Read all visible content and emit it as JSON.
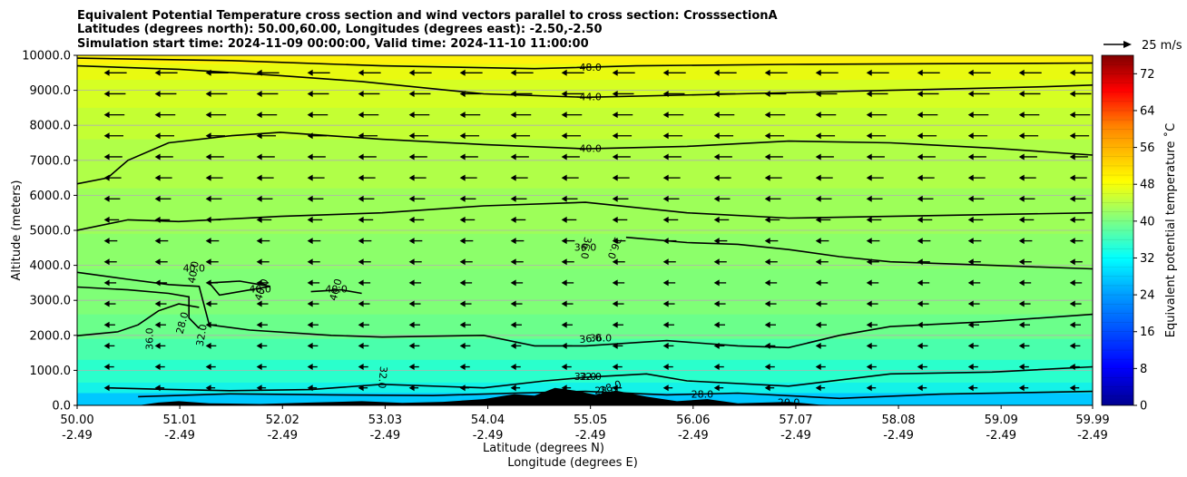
{
  "chart_data": {
    "type": "contour",
    "title_lines": [
      "Equivalent Potential Temperature cross section and wind vectors parallel to cross section: CrosssectionA",
      "Latitudes (degrees north): 50.00,60.00, Longitudes (degrees east): -2.50,-2.50",
      "Simulation start time: 2024-11-09 00:00:00, Valid time: 2024-11-10 11:00:00"
    ],
    "xlabel_lines": [
      "Latitude (degrees N)",
      "Longitude (degrees E)"
    ],
    "ylabel": "Altitude (meters)",
    "colorbar_label": "Equivalent potential temperature ˚C",
    "quiver_key_label": "25 m/s",
    "xlim": [
      50.0,
      59.99
    ],
    "ylim": [
      0,
      10000
    ],
    "xticks": [
      {
        "value": 50.0,
        "lat": "50.00",
        "lon": "-2.49"
      },
      {
        "value": 51.01,
        "lat": "51.01",
        "lon": "-2.49"
      },
      {
        "value": 52.02,
        "lat": "52.02",
        "lon": "-2.49"
      },
      {
        "value": 53.03,
        "lat": "53.03",
        "lon": "-2.49"
      },
      {
        "value": 54.04,
        "lat": "54.04",
        "lon": "-2.49"
      },
      {
        "value": 55.05,
        "lat": "55.05",
        "lon": "-2.49"
      },
      {
        "value": 56.06,
        "lat": "56.06",
        "lon": "-2.49"
      },
      {
        "value": 57.07,
        "lat": "57.07",
        "lon": "-2.49"
      },
      {
        "value": 58.08,
        "lat": "58.08",
        "lon": "-2.49"
      },
      {
        "value": 59.09,
        "lat": "59.09",
        "lon": "-2.49"
      },
      {
        "value": 59.99,
        "lat": "59.99",
        "lon": "-2.49"
      }
    ],
    "yticks": [
      {
        "value": 0,
        "label": "0.0"
      },
      {
        "value": 1000,
        "label": "1000.0"
      },
      {
        "value": 2000,
        "label": "2000.0"
      },
      {
        "value": 3000,
        "label": "3000.0"
      },
      {
        "value": 4000,
        "label": "4000.0"
      },
      {
        "value": 5000,
        "label": "5000.0"
      },
      {
        "value": 6000,
        "label": "6000.0"
      },
      {
        "value": 7000,
        "label": "7000.0"
      },
      {
        "value": 8000,
        "label": "8000.0"
      },
      {
        "value": 9000,
        "label": "9000.0"
      },
      {
        "value": 10000,
        "label": "10000.0"
      }
    ],
    "colorbar": {
      "range": [
        0,
        76
      ],
      "ticks": [
        0,
        8,
        16,
        24,
        32,
        40,
        48,
        56,
        64,
        72
      ]
    },
    "filled_bands": [
      {
        "top": 10000,
        "color": "#fdf20b"
      },
      {
        "top": 9750,
        "color": "#e9fa10"
      },
      {
        "top": 9300,
        "color": "#d6ff23"
      },
      {
        "top": 8500,
        "color": "#c4ff33"
      },
      {
        "top": 7600,
        "color": "#b0ff48"
      },
      {
        "top": 6200,
        "color": "#9dff59"
      },
      {
        "top": 4900,
        "color": "#8cff6a"
      },
      {
        "top": 3900,
        "color": "#7fff77"
      },
      {
        "top": 2600,
        "color": "#6bff8b"
      },
      {
        "top": 1900,
        "color": "#4affac"
      },
      {
        "top": 1300,
        "color": "#2affcc"
      },
      {
        "top": 650,
        "color": "#14f2e8"
      },
      {
        "top": 350,
        "color": "#00c8ff"
      }
    ],
    "contours": [
      {
        "level": 48,
        "label": "48.0",
        "label_at": [
          55.05,
          9640
        ],
        "points": [
          [
            50.0,
            9920
          ],
          [
            51.5,
            9850
          ],
          [
            53.0,
            9700
          ],
          [
            54.5,
            9620
          ],
          [
            55.5,
            9700
          ],
          [
            57.0,
            9740
          ],
          [
            59.99,
            9780
          ]
        ]
      },
      {
        "level": 44,
        "label": "44.0",
        "label_at": [
          55.05,
          8800
        ],
        "points": [
          [
            50.0,
            9700
          ],
          [
            51.0,
            9600
          ],
          [
            52.0,
            9420
          ],
          [
            52.8,
            9250
          ],
          [
            54.0,
            8900
          ],
          [
            55.0,
            8800
          ],
          [
            56.5,
            8900
          ],
          [
            58.0,
            9000
          ],
          [
            59.5,
            9100
          ],
          [
            59.99,
            9150
          ]
        ]
      },
      {
        "level": 40,
        "label": "40.0",
        "label_at": [
          55.05,
          7320
        ],
        "points": [
          [
            50.0,
            6330
          ],
          [
            50.3,
            6500
          ],
          [
            50.5,
            7000
          ],
          [
            50.9,
            7500
          ],
          [
            51.5,
            7700
          ],
          [
            52.0,
            7800
          ],
          [
            53.0,
            7600
          ],
          [
            54.0,
            7450
          ],
          [
            55.0,
            7330
          ],
          [
            56.0,
            7400
          ],
          [
            57.0,
            7550
          ],
          [
            58.0,
            7500
          ],
          [
            59.0,
            7350
          ],
          [
            59.99,
            7150
          ]
        ]
      },
      {
        "level": 40,
        "label": "",
        "label_at": null,
        "points": [
          [
            50.0,
            5000
          ],
          [
            50.5,
            5300
          ],
          [
            51.0,
            5250
          ],
          [
            52.0,
            5400
          ],
          [
            53.0,
            5500
          ],
          [
            54.0,
            5700
          ],
          [
            55.0,
            5800
          ],
          [
            56.0,
            5500
          ],
          [
            57.0,
            5350
          ],
          [
            58.0,
            5400
          ],
          [
            59.0,
            5450
          ],
          [
            59.99,
            5500
          ]
        ]
      },
      {
        "level": 36,
        "label": "36.0",
        "label_at": [
          55.0,
          4500
        ],
        "points": [
          [
            55.4,
            4800
          ],
          [
            56.0,
            4650
          ],
          [
            56.5,
            4600
          ],
          [
            57.0,
            4450
          ],
          [
            57.5,
            4250
          ],
          [
            58.0,
            4100
          ],
          [
            59.0,
            4000
          ],
          [
            59.99,
            3900
          ]
        ]
      },
      {
        "level": 40,
        "label": "40.0",
        "label_at": [
          51.15,
          3900
        ],
        "points": [
          [
            50.0,
            3800
          ],
          [
            50.5,
            3600
          ],
          [
            50.9,
            3450
          ],
          [
            51.2,
            3400
          ],
          [
            51.3,
            2300
          ],
          [
            51.7,
            2150
          ],
          [
            52.5,
            2000
          ],
          [
            53.0,
            1950
          ],
          [
            54.0,
            2000
          ],
          [
            54.5,
            1700
          ],
          [
            55.0,
            1700
          ],
          [
            55.8,
            1850
          ],
          [
            56.5,
            1700
          ],
          [
            57.0,
            1650
          ],
          [
            57.5,
            2000
          ],
          [
            58.0,
            2250
          ],
          [
            59.0,
            2400
          ],
          [
            59.99,
            2600
          ]
        ]
      },
      {
        "level": 40,
        "label": "40.0",
        "label_at": [
          51.8,
          3300
        ],
        "points": [
          [
            51.3,
            3500
          ],
          [
            51.6,
            3550
          ],
          [
            51.9,
            3400
          ],
          [
            51.4,
            3150
          ],
          [
            51.3,
            3500
          ]
        ]
      },
      {
        "level": 40,
        "label": "40.0",
        "label_at": [
          52.55,
          3300
        ],
        "points": [
          [
            52.3,
            3250
          ],
          [
            52.6,
            3300
          ],
          [
            52.8,
            3200
          ]
        ]
      },
      {
        "level": 36,
        "label": "36.0",
        "label_at": [
          55.15,
          1900
        ],
        "points": [
          [
            50.0,
            1990
          ],
          [
            50.4,
            2100
          ],
          [
            50.6,
            2300
          ],
          [
            50.8,
            2700
          ],
          [
            51.0,
            2900
          ],
          [
            51.2,
            2800
          ]
        ]
      },
      {
        "level": 36,
        "label": "",
        "label_at": null,
        "points": [
          [
            50.0,
            3380
          ],
          [
            50.5,
            3300
          ],
          [
            50.9,
            3200
          ],
          [
            51.1,
            3100
          ],
          [
            51.1,
            2500
          ],
          [
            51.2,
            2200
          ]
        ]
      },
      {
        "level": 32,
        "label": "32.0",
        "label_at": [
          55.0,
          800
        ],
        "points": [
          [
            50.3,
            500
          ],
          [
            50.8,
            460
          ],
          [
            51.5,
            420
          ],
          [
            52.3,
            450
          ],
          [
            53.0,
            600
          ],
          [
            54.0,
            500
          ],
          [
            54.6,
            700
          ],
          [
            55.0,
            800
          ],
          [
            55.6,
            900
          ],
          [
            56.0,
            700
          ],
          [
            57.0,
            550
          ],
          [
            58.0,
            900
          ],
          [
            59.0,
            950
          ],
          [
            59.99,
            1100
          ]
        ]
      },
      {
        "level": 28,
        "label": "28.0",
        "label_at": [
          55.2,
          400
        ],
        "points": [
          [
            50.6,
            250
          ],
          [
            51.5,
            330
          ],
          [
            52.5,
            300
          ],
          [
            53.5,
            280
          ],
          [
            54.3,
            350
          ],
          [
            55.0,
            400
          ],
          [
            55.8,
            300
          ],
          [
            56.5,
            350
          ],
          [
            57.5,
            200
          ],
          [
            58.5,
            320
          ],
          [
            59.99,
            400
          ]
        ]
      }
    ],
    "contour_text_labels": [
      {
        "label": "36.0",
        "at": [
          50.72,
          1900
        ],
        "rotate": -90
      },
      {
        "label": "32.0",
        "at": [
          51.23,
          2000
        ],
        "rotate": -80
      },
      {
        "label": "28.0",
        "at": [
          51.04,
          2350
        ],
        "rotate": -75
      },
      {
        "label": "40.0",
        "at": [
          51.15,
          3800
        ],
        "rotate": -80
      },
      {
        "label": "40.0",
        "at": [
          51.82,
          3300
        ],
        "rotate": -70
      },
      {
        "label": "40.0",
        "at": [
          52.55,
          3300
        ],
        "rotate": -75
      },
      {
        "label": "36.0",
        "at": [
          55.0,
          4500
        ],
        "rotate": 100
      },
      {
        "label": "36.0",
        "at": [
          55.28,
          4500
        ],
        "rotate": 110
      },
      {
        "label": "36.0",
        "at": [
          55.05,
          1890
        ],
        "rotate": -5
      },
      {
        "label": "32.0",
        "at": [
          53.0,
          800
        ],
        "rotate": 95
      },
      {
        "label": "32.0",
        "at": [
          55.05,
          800
        ],
        "rotate": 0
      },
      {
        "label": "28.0",
        "at": [
          55.25,
          500
        ],
        "rotate": -20
      },
      {
        "label": "28.0",
        "at": [
          56.15,
          300
        ],
        "rotate": 0
      },
      {
        "label": "20.0",
        "at": [
          57.0,
          70
        ],
        "rotate": 0
      }
    ],
    "terrain": [
      [
        50.0,
        0
      ],
      [
        50.6,
        0
      ],
      [
        50.8,
        80
      ],
      [
        51.0,
        120
      ],
      [
        51.3,
        60
      ],
      [
        51.8,
        40
      ],
      [
        52.3,
        80
      ],
      [
        52.8,
        120
      ],
      [
        53.2,
        70
      ],
      [
        53.6,
        100
      ],
      [
        54.0,
        180
      ],
      [
        54.3,
        320
      ],
      [
        54.5,
        280
      ],
      [
        54.7,
        500
      ],
      [
        54.9,
        420
      ],
      [
        55.1,
        300
      ],
      [
        55.3,
        420
      ],
      [
        55.6,
        250
      ],
      [
        55.9,
        120
      ],
      [
        56.2,
        180
      ],
      [
        56.5,
        60
      ],
      [
        57.0,
        100
      ],
      [
        57.3,
        20
      ],
      [
        57.6,
        0
      ],
      [
        59.99,
        0
      ]
    ],
    "wind_vectors": {
      "direction": "left",
      "quiver_key_speed_ms": 25
    }
  }
}
